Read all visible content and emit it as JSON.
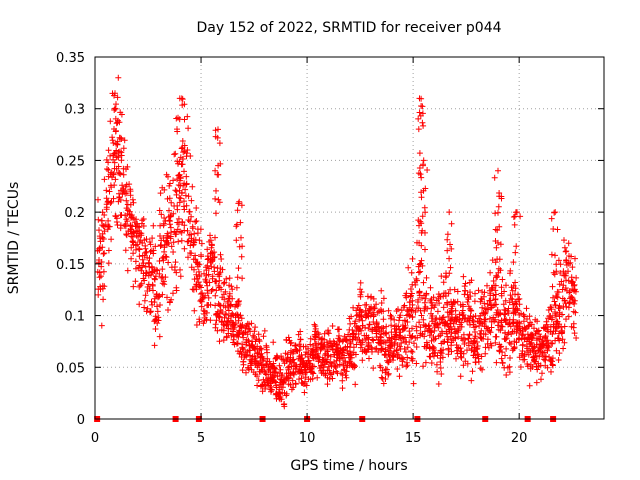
{
  "chart_data": {
    "type": "scatter",
    "title": "Day 152 of 2022, SRMTID for receiver p044",
    "xlabel": "GPS time / hours",
    "ylabel": "SRMTID / TECUs",
    "xlim": [
      0,
      24
    ],
    "ylim": [
      0,
      0.35
    ],
    "xticks": [
      0,
      5,
      10,
      15,
      20
    ],
    "xtick_labels": [
      "0",
      "5",
      "10",
      "15",
      "20"
    ],
    "yticks": [
      0,
      0.05,
      0.1,
      0.15,
      0.2,
      0.25,
      0.3,
      0.35
    ],
    "ytick_labels": [
      "0",
      "0.05",
      "0.1",
      "0.15",
      "0.2",
      "0.25",
      "0.3",
      "0.35"
    ],
    "grid": true,
    "marker": "plus",
    "color": "#ff0000",
    "zero_markers_x": [
      0.1,
      3.8,
      4.9,
      7.9,
      10.0,
      12.6,
      15.2,
      18.4,
      20.4,
      21.6
    ],
    "series": [
      {
        "name": "SRMTID",
        "x": [
          0.1,
          0.3,
          0.5,
          0.7,
          0.9,
          1.1,
          1.3,
          1.5,
          1.7,
          1.9,
          2.1,
          2.3,
          2.5,
          2.7,
          2.9,
          3.1,
          3.3,
          3.5,
          3.7,
          3.9,
          4.1,
          4.3,
          4.5,
          4.7,
          4.9,
          5.1,
          5.3,
          5.5,
          5.7,
          5.9,
          6.1,
          6.3,
          6.5,
          6.7,
          6.9,
          7.1,
          7.3,
          7.5,
          7.7,
          7.9,
          8.1,
          8.3,
          8.5,
          8.7,
          8.9,
          9.1,
          9.3,
          9.5,
          9.7,
          9.9,
          10.1,
          10.3,
          10.5,
          10.7,
          10.9,
          11.1,
          11.3,
          11.5,
          11.7,
          11.9,
          12.1,
          12.3,
          12.5,
          12.7,
          12.9,
          13.1,
          13.3,
          13.5,
          13.7,
          13.9,
          14.1,
          14.3,
          14.5,
          14.7,
          14.9,
          15.1,
          15.3,
          15.5,
          15.7,
          15.9,
          16.1,
          16.3,
          16.5,
          16.7,
          16.9,
          17.1,
          17.3,
          17.5,
          17.7,
          17.9,
          18.1,
          18.3,
          18.5,
          18.7,
          18.9,
          19.1,
          19.3,
          19.5,
          19.7,
          19.9,
          20.1,
          20.3,
          20.5,
          20.7,
          20.9,
          21.1,
          21.3,
          21.5,
          21.7,
          21.9,
          22.1,
          22.3,
          22.5,
          22.7
        ],
        "center": [
          0.16,
          0.15,
          0.17,
          0.23,
          0.26,
          0.25,
          0.22,
          0.2,
          0.19,
          0.18,
          0.16,
          0.15,
          0.14,
          0.14,
          0.12,
          0.16,
          0.17,
          0.18,
          0.19,
          0.2,
          0.22,
          0.22,
          0.2,
          0.16,
          0.13,
          0.12,
          0.13,
          0.14,
          0.12,
          0.11,
          0.1,
          0.1,
          0.1,
          0.09,
          0.08,
          0.07,
          0.07,
          0.06,
          0.06,
          0.05,
          0.05,
          0.04,
          0.04,
          0.04,
          0.04,
          0.05,
          0.05,
          0.06,
          0.06,
          0.05,
          0.06,
          0.06,
          0.07,
          0.06,
          0.06,
          0.06,
          0.06,
          0.07,
          0.06,
          0.06,
          0.07,
          0.08,
          0.1,
          0.09,
          0.09,
          0.09,
          0.08,
          0.08,
          0.07,
          0.07,
          0.07,
          0.08,
          0.08,
          0.09,
          0.1,
          0.12,
          0.13,
          0.11,
          0.1,
          0.09,
          0.08,
          0.09,
          0.1,
          0.09,
          0.09,
          0.08,
          0.08,
          0.1,
          0.09,
          0.08,
          0.08,
          0.09,
          0.09,
          0.11,
          0.12,
          0.1,
          0.09,
          0.09,
          0.1,
          0.09,
          0.08,
          0.08,
          0.07,
          0.07,
          0.07,
          0.07,
          0.07,
          0.08,
          0.09,
          0.1,
          0.12,
          0.13,
          0.12,
          0.12
        ],
        "spread": [
          0.06,
          0.06,
          0.07,
          0.07,
          0.07,
          0.07,
          0.06,
          0.05,
          0.05,
          0.05,
          0.05,
          0.05,
          0.05,
          0.05,
          0.05,
          0.07,
          0.07,
          0.07,
          0.07,
          0.08,
          0.08,
          0.08,
          0.07,
          0.06,
          0.05,
          0.05,
          0.05,
          0.05,
          0.05,
          0.05,
          0.04,
          0.04,
          0.04,
          0.04,
          0.04,
          0.03,
          0.03,
          0.03,
          0.03,
          0.03,
          0.03,
          0.03,
          0.03,
          0.03,
          0.03,
          0.03,
          0.03,
          0.03,
          0.03,
          0.03,
          0.03,
          0.03,
          0.03,
          0.03,
          0.03,
          0.03,
          0.03,
          0.03,
          0.03,
          0.03,
          0.03,
          0.04,
          0.05,
          0.04,
          0.04,
          0.04,
          0.04,
          0.04,
          0.04,
          0.03,
          0.03,
          0.04,
          0.04,
          0.05,
          0.06,
          0.07,
          0.08,
          0.06,
          0.05,
          0.05,
          0.05,
          0.05,
          0.05,
          0.04,
          0.04,
          0.04,
          0.04,
          0.05,
          0.05,
          0.04,
          0.04,
          0.05,
          0.05,
          0.06,
          0.06,
          0.05,
          0.05,
          0.05,
          0.05,
          0.04,
          0.04,
          0.04,
          0.04,
          0.03,
          0.03,
          0.03,
          0.04,
          0.04,
          0.05,
          0.05,
          0.06,
          0.06,
          0.05,
          0.05
        ],
        "peaks": [
          {
            "x": 1.1,
            "y": 0.33
          },
          {
            "x": 4.0,
            "y": 0.31
          },
          {
            "x": 5.8,
            "y": 0.28
          },
          {
            "x": 6.8,
            "y": 0.21
          },
          {
            "x": 15.3,
            "y": 0.31
          },
          {
            "x": 15.5,
            "y": 0.25
          },
          {
            "x": 16.7,
            "y": 0.2
          },
          {
            "x": 19.0,
            "y": 0.24
          },
          {
            "x": 19.9,
            "y": 0.2
          },
          {
            "x": 21.7,
            "y": 0.2
          }
        ]
      }
    ]
  }
}
